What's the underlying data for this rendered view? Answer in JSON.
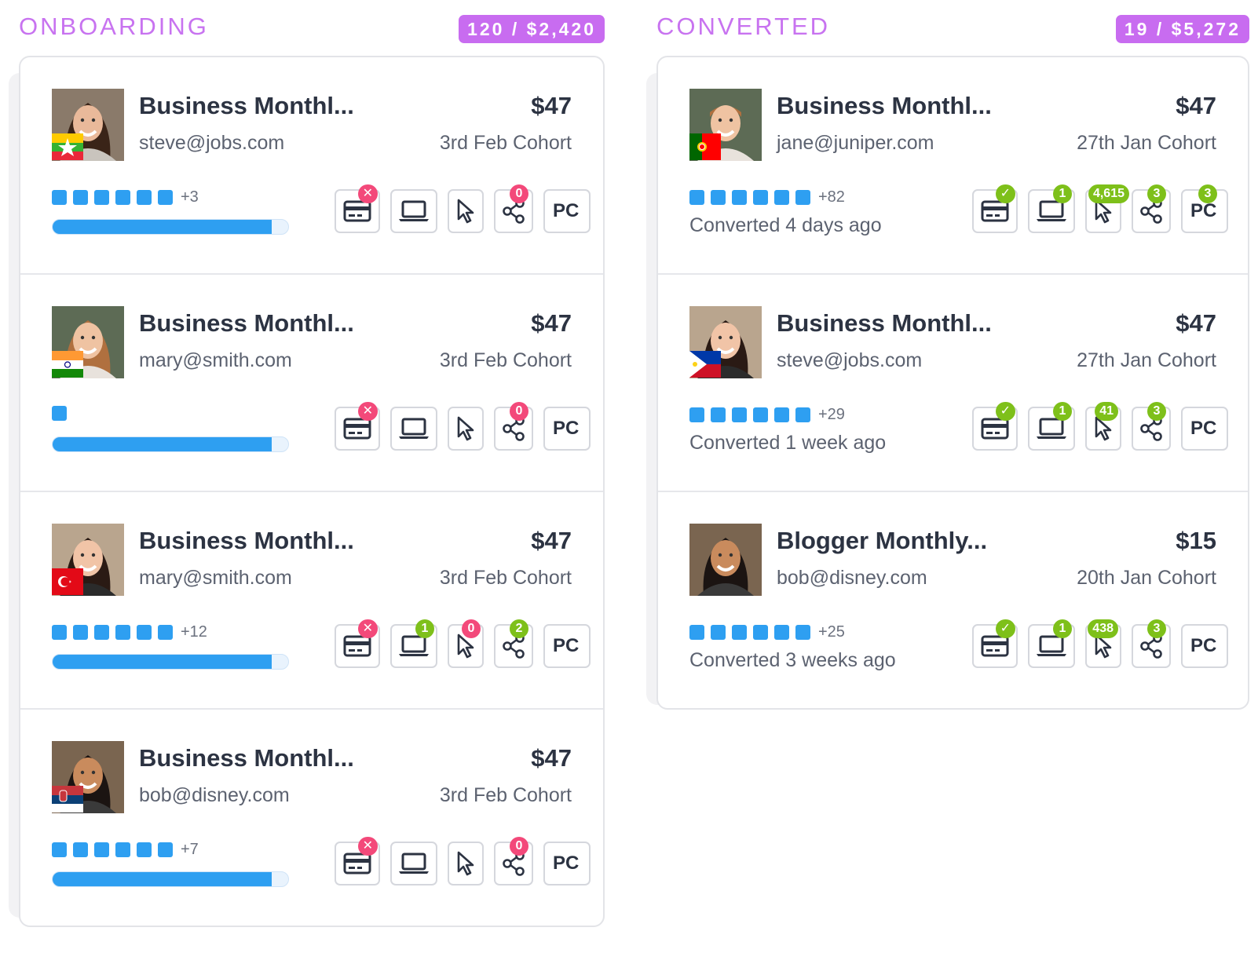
{
  "columns": {
    "onboarding": {
      "title": "ONBOARDING",
      "summary": "120 / $2,420",
      "cards": [
        {
          "plan": "Business Monthl...",
          "email": "steve@jobs.com",
          "price": "$47",
          "cohort": "3rd Feb Cohort",
          "dots_count": 6,
          "dots_more": "+3",
          "progress": 0.93,
          "flag": "myanmar",
          "badges": {
            "card": "✕",
            "device": "",
            "click": "",
            "share": "0"
          }
        },
        {
          "plan": "Business Monthl...",
          "email": "mary@smith.com",
          "price": "$47",
          "cohort": "3rd Feb Cohort",
          "dots_count": 1,
          "dots_more": "",
          "progress": 0.93,
          "flag": "india",
          "badges": {
            "card": "✕",
            "device": "",
            "click": "",
            "share": "0"
          }
        },
        {
          "plan": "Business Monthl...",
          "email": "mary@smith.com",
          "price": "$47",
          "cohort": "3rd Feb Cohort",
          "dots_count": 6,
          "dots_more": "+12",
          "progress": 0.93,
          "flag": "turkey",
          "badges": {
            "card": "✕",
            "device": "1",
            "click": "0",
            "share": "2"
          }
        },
        {
          "plan": "Business Monthl...",
          "email": "bob@disney.com",
          "price": "$47",
          "cohort": "3rd Feb Cohort",
          "dots_count": 6,
          "dots_more": "+7",
          "progress": 0.93,
          "flag": "serbia",
          "badges": {
            "card": "✕",
            "device": "",
            "click": "",
            "share": "0"
          }
        }
      ]
    },
    "converted": {
      "title": "CONVERTED",
      "summary": "19 / $5,272",
      "cards": [
        {
          "plan": "Business Monthl...",
          "email": "jane@juniper.com",
          "price": "$47",
          "cohort": "27th Jan Cohort",
          "dots_count": 6,
          "dots_more": "+82",
          "status": "Converted 4 days ago",
          "flag": "portugal",
          "badges": {
            "card": "✓",
            "device": "1",
            "click": "4,615",
            "share": "3",
            "pc": "3"
          }
        },
        {
          "plan": "Business Monthl...",
          "email": "steve@jobs.com",
          "price": "$47",
          "cohort": "27th Jan Cohort",
          "dots_count": 6,
          "dots_more": "+29",
          "status": "Converted 1 week ago",
          "flag": "philippines",
          "badges": {
            "card": "✓",
            "device": "1",
            "click": "41",
            "share": "3"
          }
        },
        {
          "plan": "Blogger Monthly...",
          "email": "bob@disney.com",
          "price": "$15",
          "cohort": "20th Jan Cohort",
          "dots_count": 6,
          "dots_more": "+25",
          "status": "Converted 3 weeks ago",
          "flag": "",
          "badges": {
            "card": "✓",
            "device": "1",
            "click": "438",
            "share": "3"
          }
        }
      ]
    }
  },
  "pc_label": "PC",
  "colors": {
    "accent_purple": "#c86cf0",
    "blue": "#2e9ff1",
    "badge_red": "#f3497a",
    "badge_green": "#7ec01a"
  }
}
